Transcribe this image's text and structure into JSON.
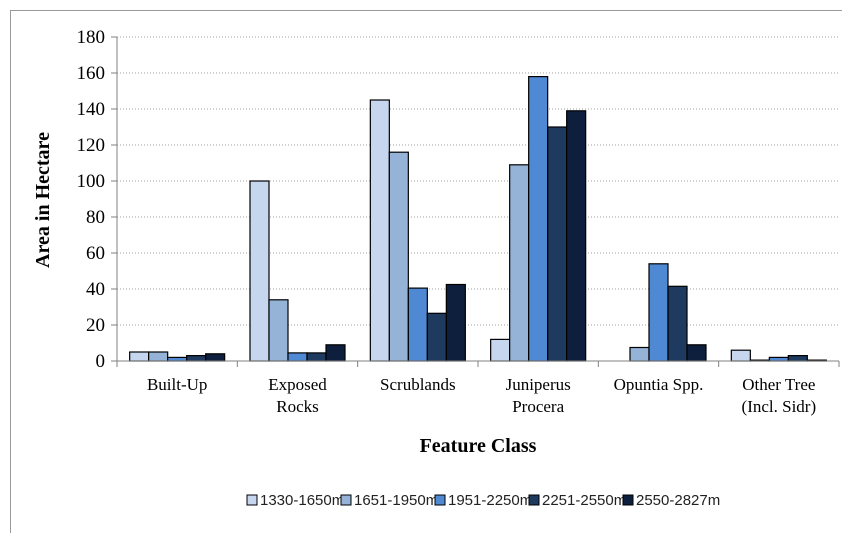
{
  "chart_data": {
    "type": "bar",
    "title": "",
    "xlabel": "Feature Class",
    "ylabel": "Area in Hectare",
    "ylim": [
      0,
      180
    ],
    "yticks": [
      0,
      20,
      40,
      60,
      80,
      100,
      120,
      140,
      160,
      180
    ],
    "grid": true,
    "legend_position": "bottom",
    "categories": [
      [
        "Built-Up"
      ],
      [
        "Exposed",
        "Rocks"
      ],
      [
        "Scrublands"
      ],
      [
        "Juniperus",
        "Procera"
      ],
      [
        "Opuntia Spp."
      ],
      [
        "Other Tree",
        "(Incl. Sidr)"
      ]
    ],
    "series": [
      {
        "name": "1330-1650m",
        "color": "#c6d6ef",
        "values": [
          5,
          100,
          145,
          12,
          0,
          6
        ]
      },
      {
        "name": "1651-1950m",
        "color": "#95b3d7",
        "values": [
          5,
          34,
          116,
          109,
          7.5,
          0.5
        ]
      },
      {
        "name": "1951-2250m",
        "color": "#4f88d3",
        "values": [
          2,
          4.5,
          40.5,
          158,
          54,
          2
        ]
      },
      {
        "name": "2251-2550m",
        "color": "#1f3a5f",
        "values": [
          3,
          4.5,
          26.5,
          130,
          41.5,
          3
        ]
      },
      {
        "name": "2550-2827m",
        "color": "#0e1f3d",
        "values": [
          4,
          9,
          42.5,
          139,
          9,
          0.5
        ]
      }
    ]
  }
}
